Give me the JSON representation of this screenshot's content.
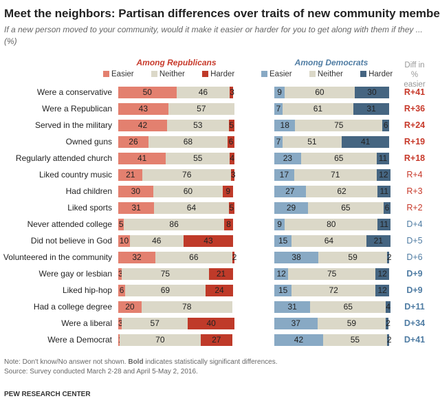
{
  "title": "Meet the neighbors: Partisan differences over traits of new community members",
  "subtitle": "If a new person moved to your community, would it make it easier or harder for you to get along with them if they ... (%)",
  "note": "Note: Don't know/No answer not shown. ",
  "note_bold": "Bold",
  "note_rest": " indicates statistically significant differences.",
  "source": "Source: Survey conducted March 2-28 and April 5-May 2, 2016.",
  "org": "PEW RESEARCH CENTER",
  "colors": {
    "rep_easier": "#e3806f",
    "neither": "#dbd8c8",
    "rep_harder": "#bf3a29",
    "dem_easier": "#88a9c4",
    "dem_harder": "#456581",
    "r_text": "#c7392a",
    "d_text": "#4f7ca3"
  },
  "chart_data": {
    "type": "bar",
    "stacked": true,
    "orientation": "horizontal",
    "panels": [
      {
        "title": "Among Republicans",
        "key": "rep"
      },
      {
        "title": "Among Democrats",
        "key": "dem"
      }
    ],
    "legend": [
      "Easier",
      "Neither",
      "Harder"
    ],
    "diff_header": "Diff in % easier",
    "categories": [
      "Were a conservative",
      "Were a Republican",
      "Served in the military",
      "Owned guns",
      "Regularly attended church",
      "Liked country music",
      "Had children",
      "Liked sports",
      "Never attended college",
      "Did not believe in God",
      "Volunteered in the community",
      "Were gay or lesbian",
      "Liked hip-hop",
      "Had a college degree",
      "Were a liberal",
      "Were a Democrat"
    ],
    "rep": {
      "Easier": [
        50,
        43,
        42,
        26,
        41,
        21,
        30,
        31,
        5,
        10,
        32,
        3,
        6,
        20,
        3,
        1
      ],
      "Neither": [
        46,
        57,
        53,
        68,
        55,
        76,
        60,
        64,
        86,
        46,
        66,
        75,
        69,
        78,
        57,
        70
      ],
      "Harder": [
        3,
        null,
        5,
        6,
        4,
        3,
        9,
        5,
        8,
        43,
        2,
        21,
        24,
        null,
        40,
        27
      ]
    },
    "dem": {
      "Easier": [
        9,
        7,
        18,
        7,
        23,
        17,
        27,
        29,
        9,
        15,
        38,
        12,
        15,
        31,
        37,
        42
      ],
      "Neither": [
        60,
        61,
        75,
        51,
        65,
        71,
        62,
        65,
        80,
        64,
        59,
        75,
        72,
        65,
        59,
        55
      ],
      "Harder": [
        30,
        31,
        6,
        41,
        11,
        12,
        11,
        6,
        11,
        21,
        2,
        12,
        12,
        4,
        2,
        2
      ]
    },
    "diff": [
      "R+41",
      "R+36",
      "R+24",
      "R+19",
      "R+18",
      "R+4",
      "R+3",
      "R+2",
      "D+4",
      "D+5",
      "D+6",
      "D+9",
      "D+9",
      "D+11",
      "D+34",
      "D+41"
    ],
    "diff_significant": [
      true,
      true,
      true,
      true,
      true,
      false,
      false,
      false,
      false,
      false,
      false,
      true,
      true,
      true,
      true,
      true
    ]
  }
}
